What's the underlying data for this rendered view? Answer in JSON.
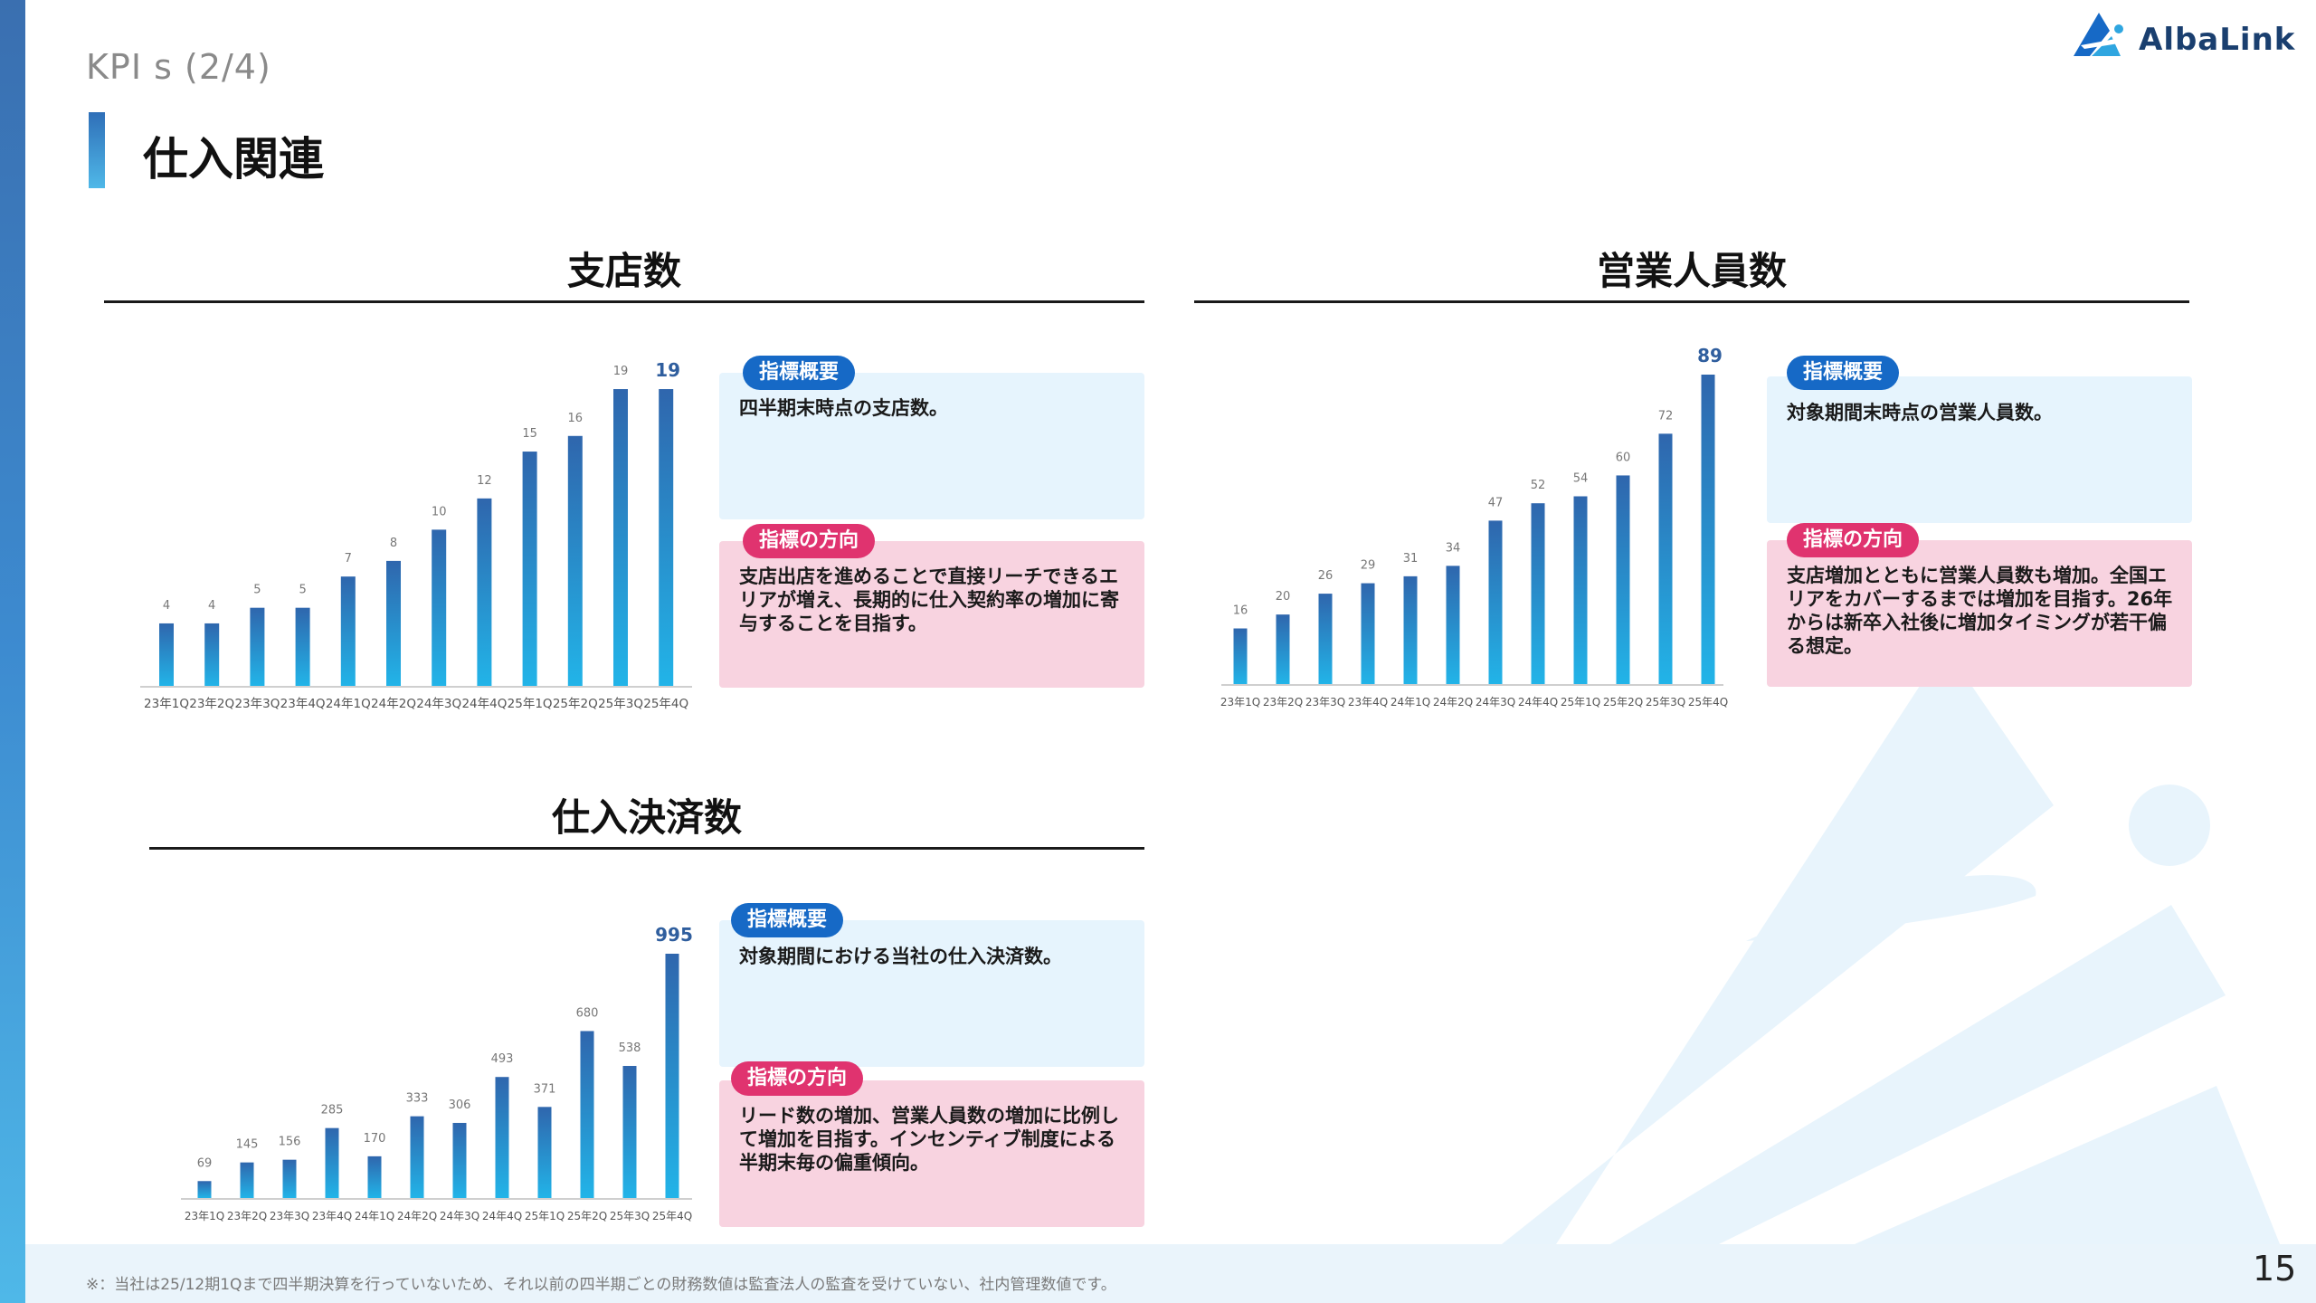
{
  "header": {
    "kpi_label": "KPI s (2/4)",
    "page_title": "仕入関連",
    "logo_text": "AlbaLink"
  },
  "colors": {
    "bar_top": "#2f66ad",
    "bar_bottom": "#22b4e8",
    "accent_blue": "#1669c6",
    "accent_pink": "#e0336f",
    "box_blue": "#e6f4fd",
    "box_pink": "#f8d3e0"
  },
  "sections": {
    "branches": {
      "title": "支店数",
      "summary_label": "指標概要",
      "summary_text": "四半期末時点の支店数。",
      "direction_label": "指標の方向",
      "direction_text": "支店出店を進めることで直接リーチできるエリアが増え、長期的に仕入契約率の増加に寄与することを目指す。"
    },
    "sales_staff": {
      "title": "営業人員数",
      "summary_label": "指標概要",
      "summary_text": "対象期間末時点の営業人員数。",
      "direction_label": "指標の方向",
      "direction_text": "支店増加とともに営業人員数も増加。全国エリアをカバーするまでは増加を目指す。26年からは新卒入社後に増加タイミングが若干偏る想定。"
    },
    "purchases": {
      "title": "仕入決済数",
      "summary_label": "指標概要",
      "summary_text": "対象期間における当社の仕入決済数。",
      "direction_label": "指標の方向",
      "direction_text": "リード数の増加、営業人員数の増加に比例して増加を目指す。インセンティブ制度による半期末毎の偏重傾向。"
    }
  },
  "chart_data": [
    {
      "id": "branches",
      "type": "bar",
      "title": "支店数",
      "categories": [
        "23年1Q",
        "23年2Q",
        "23年3Q",
        "23年4Q",
        "24年1Q",
        "24年2Q",
        "24年3Q",
        "24年4Q",
        "25年1Q",
        "25年2Q",
        "25年3Q",
        "25年4Q"
      ],
      "values": [
        4,
        4,
        5,
        5,
        7,
        8,
        10,
        12,
        15,
        16,
        19,
        19
      ],
      "highlight_last": true,
      "ylim": [
        0,
        19
      ]
    },
    {
      "id": "sales_staff",
      "type": "bar",
      "title": "営業人員数",
      "categories": [
        "23年1Q",
        "23年2Q",
        "23年3Q",
        "23年4Q",
        "24年1Q",
        "24年2Q",
        "24年3Q",
        "24年4Q",
        "25年1Q",
        "25年2Q",
        "25年3Q",
        "25年4Q"
      ],
      "values": [
        16,
        20,
        26,
        29,
        31,
        34,
        47,
        52,
        54,
        60,
        72,
        89
      ],
      "highlight_last": true,
      "ylim": [
        0,
        89
      ]
    },
    {
      "id": "purchases",
      "type": "bar",
      "title": "仕入決済数",
      "categories": [
        "23年1Q",
        "23年2Q",
        "23年3Q",
        "23年4Q",
        "24年1Q",
        "24年2Q",
        "24年3Q",
        "24年4Q",
        "25年1Q",
        "25年2Q",
        "25年3Q",
        "25年4Q"
      ],
      "values": [
        69,
        145,
        156,
        285,
        170,
        333,
        306,
        493,
        371,
        680,
        538,
        995
      ],
      "highlight_last": true,
      "ylim": [
        0,
        995
      ]
    }
  ],
  "footer": {
    "note": "※：当社は25/12期1Qまで四半期決算を行っていないため、それ以前の四半期ごとの財務数値は監査法人の監査を受けていない、社内管理数値です。",
    "page_number": "15"
  }
}
